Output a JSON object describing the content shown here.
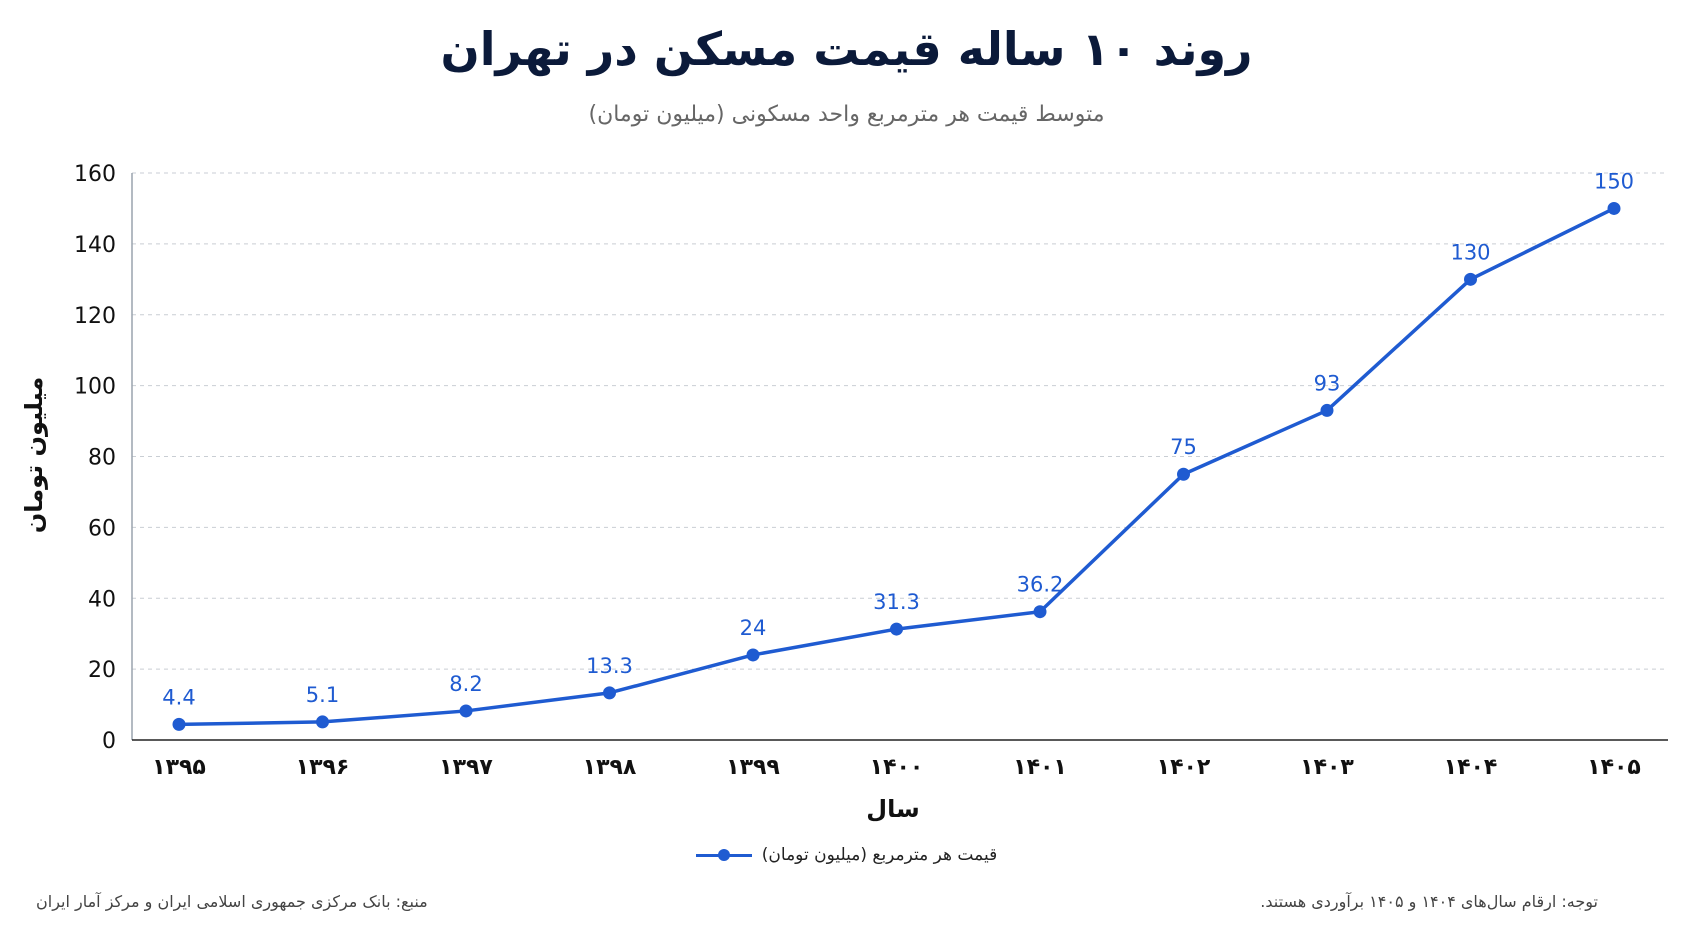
{
  "chart_data": {
    "type": "line",
    "title": "روند ۱۰ ساله قیمت مسکن در تهران",
    "subtitle": "متوسط قیمت هر مترمربع واحد مسکونی (میلیون تومان)",
    "xlabel": "سال",
    "ylabel": "میلیون تومان",
    "categories": [
      "۱۳۹۵",
      "۱۳۹۶",
      "۱۳۹۷",
      "۱۳۹۸",
      "۱۳۹۹",
      "۱۴۰۰",
      "۱۴۰۱",
      "۱۴۰۲",
      "۱۴۰۳",
      "۱۴۰۴",
      "۱۴۰۵"
    ],
    "series": [
      {
        "name": "قیمت هر مترمربع (میلیون تومان)",
        "values": [
          4.4,
          5.1,
          8.2,
          13.3,
          24,
          31.3,
          36.2,
          75,
          93,
          130,
          150
        ],
        "labels": [
          "4.4",
          "5.1",
          "8.2",
          "13.3",
          "24",
          "31.3",
          "36.2",
          "75",
          "93",
          "130",
          "150"
        ],
        "color": "#1f5bd1"
      }
    ],
    "ylim": [
      0,
      160
    ],
    "yticks": [
      "0",
      "20",
      "40",
      "60",
      "80",
      "100",
      "120",
      "140",
      "160"
    ],
    "grid": true,
    "legend_position": "bottom-center"
  },
  "footnotes": {
    "note": "توجه: ارقام سال‌های ۱۴۰۴ و ۱۴۰۵ برآوردی هستند.",
    "source": "منبع: بانک مرکزی جمهوری اسلامی ایران و مرکز آمار ایران"
  }
}
